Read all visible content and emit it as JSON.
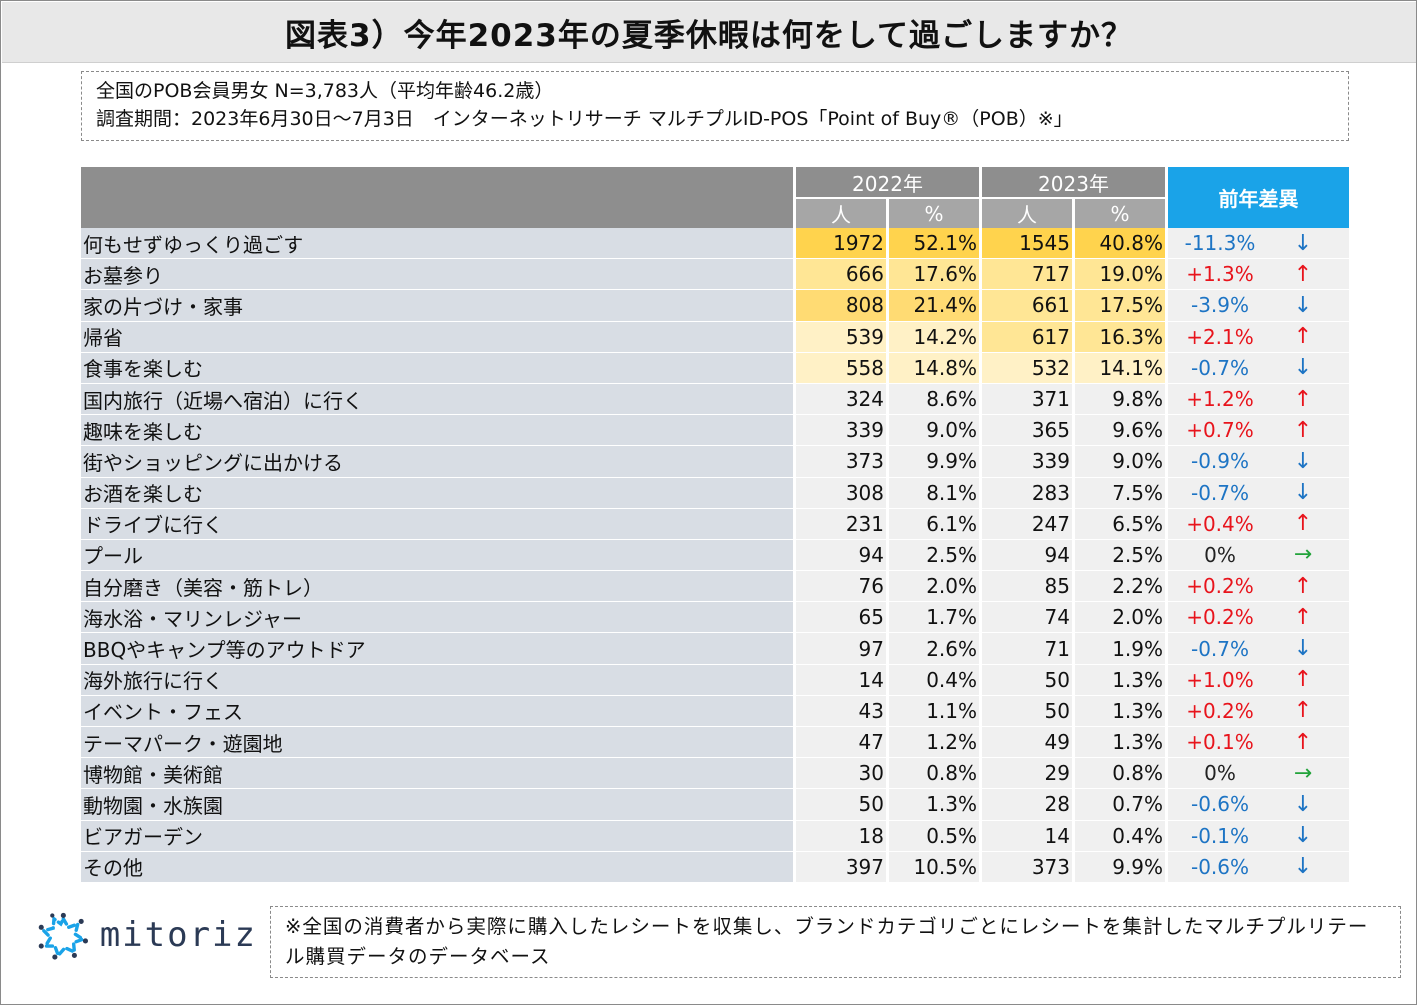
{
  "title": "図表3）今年2023年の夏季休暇は何をして過ごしますか？",
  "info": {
    "line1": "全国のPOB会員男女 N=3,783人（平均年齢46.2歳）",
    "line2": "調査期間：2023年6月30日～7月3日　インターネットリサーチ マルチプルID-POS「Point of Buy®（POB）※」"
  },
  "colors": {
    "up": "#e8141c",
    "down": "#1d74c4",
    "flat_arrow": "#22a33a",
    "header_diff": "#1aa3e8",
    "header": "#8e8e8e"
  },
  "chart_data": {
    "type": "table",
    "title": "今年2023年の夏季休暇は何をして過ごしますか？",
    "years": [
      "2022年",
      "2023年"
    ],
    "subheaders": [
      "人",
      "%"
    ],
    "diff_header": "前年差異",
    "rows": [
      {
        "item": "何もせずゆっくり過ごす",
        "n2022": "1972",
        "p2022": "52.1%",
        "n2023": "1545",
        "p2023": "40.8%",
        "diff": "-11.3%",
        "dir": "down",
        "v2022": 52.1,
        "v2023": 40.8
      },
      {
        "item": "お墓参り",
        "n2022": "666",
        "p2022": "17.6%",
        "n2023": "717",
        "p2023": "19.0%",
        "diff": "+1.3%",
        "dir": "up",
        "v2022": 17.6,
        "v2023": 19.0
      },
      {
        "item": "家の片づけ・家事",
        "n2022": "808",
        "p2022": "21.4%",
        "n2023": "661",
        "p2023": "17.5%",
        "diff": "-3.9%",
        "dir": "down",
        "v2022": 21.4,
        "v2023": 17.5
      },
      {
        "item": "帰省",
        "n2022": "539",
        "p2022": "14.2%",
        "n2023": "617",
        "p2023": "16.3%",
        "diff": "+2.1%",
        "dir": "up",
        "v2022": 14.2,
        "v2023": 16.3
      },
      {
        "item": "食事を楽しむ",
        "n2022": "558",
        "p2022": "14.8%",
        "n2023": "532",
        "p2023": "14.1%",
        "diff": "-0.7%",
        "dir": "down",
        "v2022": 14.8,
        "v2023": 14.1
      },
      {
        "item": "国内旅行（近場へ宿泊）に行く",
        "n2022": "324",
        "p2022": "8.6%",
        "n2023": "371",
        "p2023": "9.8%",
        "diff": "+1.2%",
        "dir": "up",
        "v2022": 8.6,
        "v2023": 9.8
      },
      {
        "item": "趣味を楽しむ",
        "n2022": "339",
        "p2022": "9.0%",
        "n2023": "365",
        "p2023": "9.6%",
        "diff": "+0.7%",
        "dir": "up",
        "v2022": 9.0,
        "v2023": 9.6
      },
      {
        "item": "街やショッピングに出かける",
        "n2022": "373",
        "p2022": "9.9%",
        "n2023": "339",
        "p2023": "9.0%",
        "diff": "-0.9%",
        "dir": "down",
        "v2022": 9.9,
        "v2023": 9.0
      },
      {
        "item": "お酒を楽しむ",
        "n2022": "308",
        "p2022": "8.1%",
        "n2023": "283",
        "p2023": "7.5%",
        "diff": "-0.7%",
        "dir": "down",
        "v2022": 8.1,
        "v2023": 7.5
      },
      {
        "item": "ドライブに行く",
        "n2022": "231",
        "p2022": "6.1%",
        "n2023": "247",
        "p2023": "6.5%",
        "diff": "+0.4%",
        "dir": "up",
        "v2022": 6.1,
        "v2023": 6.5
      },
      {
        "item": "プール",
        "n2022": "94",
        "p2022": "2.5%",
        "n2023": "94",
        "p2023": "2.5%",
        "diff": "0%",
        "dir": "flat",
        "v2022": 2.5,
        "v2023": 2.5
      },
      {
        "item": "自分磨き（美容・筋トレ）",
        "n2022": "76",
        "p2022": "2.0%",
        "n2023": "85",
        "p2023": "2.2%",
        "diff": "+0.2%",
        "dir": "up",
        "v2022": 2.0,
        "v2023": 2.2
      },
      {
        "item": "海水浴・マリンレジャー",
        "n2022": "65",
        "p2022": "1.7%",
        "n2023": "74",
        "p2023": "2.0%",
        "diff": "+0.2%",
        "dir": "up",
        "v2022": 1.7,
        "v2023": 2.0
      },
      {
        "item": "BBQやキャンプ等のアウトドア",
        "n2022": "97",
        "p2022": "2.6%",
        "n2023": "71",
        "p2023": "1.9%",
        "diff": "-0.7%",
        "dir": "down",
        "v2022": 2.6,
        "v2023": 1.9
      },
      {
        "item": "海外旅行に行く",
        "n2022": "14",
        "p2022": "0.4%",
        "n2023": "50",
        "p2023": "1.3%",
        "diff": "+1.0%",
        "dir": "up",
        "v2022": 0.4,
        "v2023": 1.3
      },
      {
        "item": "イベント・フェス",
        "n2022": "43",
        "p2022": "1.1%",
        "n2023": "50",
        "p2023": "1.3%",
        "diff": "+0.2%",
        "dir": "up",
        "v2022": 1.1,
        "v2023": 1.3
      },
      {
        "item": "テーマパーク・遊園地",
        "n2022": "47",
        "p2022": "1.2%",
        "n2023": "49",
        "p2023": "1.3%",
        "diff": "+0.1%",
        "dir": "up",
        "v2022": 1.2,
        "v2023": 1.3
      },
      {
        "item": "博物館・美術館",
        "n2022": "30",
        "p2022": "0.8%",
        "n2023": "29",
        "p2023": "0.8%",
        "diff": "0%",
        "dir": "flat",
        "v2022": 0.8,
        "v2023": 0.8
      },
      {
        "item": "動物園・水族園",
        "n2022": "50",
        "p2022": "1.3%",
        "n2023": "28",
        "p2023": "0.7%",
        "diff": "-0.6%",
        "dir": "down",
        "v2022": 1.3,
        "v2023": 0.7
      },
      {
        "item": "ビアガーデン",
        "n2022": "18",
        "p2022": "0.5%",
        "n2023": "14",
        "p2023": "0.4%",
        "diff": "-0.1%",
        "dir": "down",
        "v2022": 0.5,
        "v2023": 0.4
      },
      {
        "item": "その他",
        "n2022": "397",
        "p2022": "10.5%",
        "n2023": "373",
        "p2023": "9.9%",
        "diff": "-0.6%",
        "dir": "down",
        "v2022": 10.5,
        "v2023": 9.9
      }
    ]
  },
  "arrows": {
    "up": "↑",
    "down": "↓",
    "flat": "→"
  },
  "logo": {
    "text": "mitoriz"
  },
  "note": "※全国の消費者から実際に購入したレシートを収集し、ブランドカテゴリごとにレシートを集計したマルチプルリテール購買データのデータベース"
}
